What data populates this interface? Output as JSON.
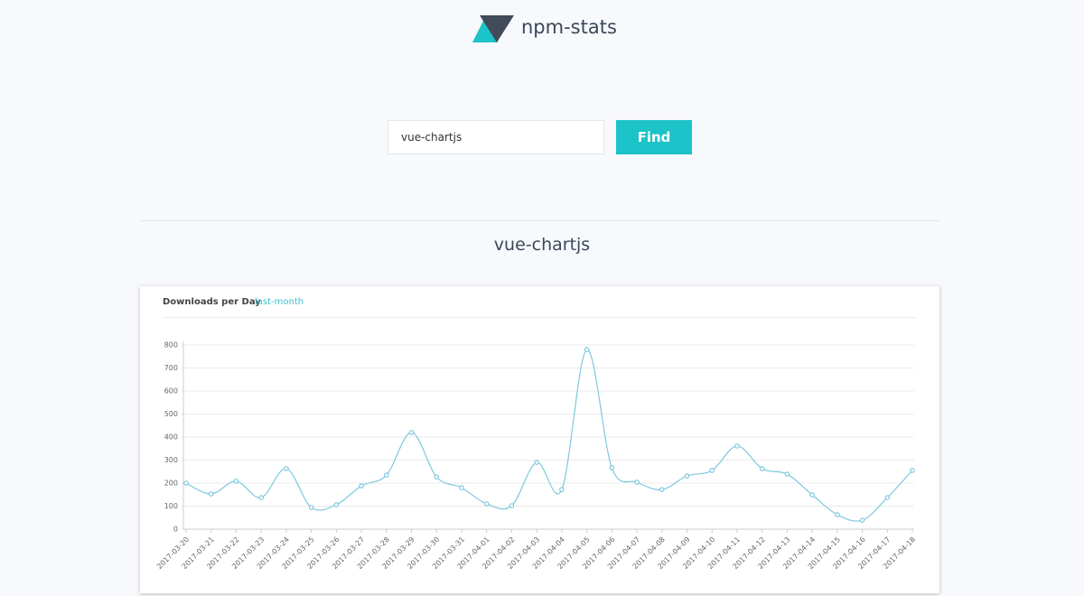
{
  "header": {
    "title": "npm-stats"
  },
  "search": {
    "value": "vue-chartjs",
    "button": "Find"
  },
  "result": {
    "title": "vue-chartjs"
  },
  "card": {
    "tabs": [
      "Downloads per Day",
      "last-month"
    ]
  },
  "chart_data": {
    "type": "line",
    "categories": [
      "2017-03-20",
      "2017-03-21",
      "2017-03-22",
      "2017-03-23",
      "2017-03-24",
      "2017-03-25",
      "2017-03-26",
      "2017-03-27",
      "2017-03-28",
      "2017-03-29",
      "2017-03-30",
      "2017-03-31",
      "2017-04-01",
      "2017-04-02",
      "2017-04-03",
      "2017-04-04",
      "2017-04-05",
      "2017-04-06",
      "2017-04-07",
      "2017-04-08",
      "2017-04-09",
      "2017-04-10",
      "2017-04-11",
      "2017-04-12",
      "2017-04-13",
      "2017-04-14",
      "2017-04-15",
      "2017-04-16",
      "2017-04-17",
      "2017-04-18"
    ],
    "values": [
      200,
      153,
      208,
      137,
      263,
      94,
      106,
      188,
      235,
      420,
      227,
      180,
      110,
      102,
      290,
      172,
      780,
      267,
      204,
      172,
      231,
      255,
      361,
      263,
      239,
      149,
      63,
      39,
      137,
      255
    ],
    "color": "#7ec8de",
    "ylim": [
      0,
      800
    ],
    "yticks": [
      0,
      100,
      200,
      300,
      400,
      500,
      600,
      700,
      800
    ],
    "grid": true
  }
}
